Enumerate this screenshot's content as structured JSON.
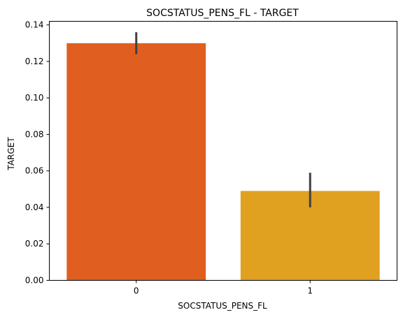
{
  "chart_data": {
    "type": "bar",
    "title": "SOCSTATUS_PENS_FL - TARGET",
    "xlabel": "SOCSTATUS_PENS_FL",
    "ylabel": "TARGET",
    "categories": [
      "0",
      "1"
    ],
    "values": [
      0.13,
      0.049
    ],
    "error_bars": [
      {
        "low": 0.124,
        "high": 0.136
      },
      {
        "low": 0.04,
        "high": 0.059
      }
    ],
    "bar_colors": [
      "#e05f20",
      "#e0a020"
    ],
    "error_bar_color": "#404040",
    "ylim": [
      0,
      0.142
    ],
    "yticks": [
      0.0,
      0.02,
      0.04,
      0.06,
      0.08,
      0.1,
      0.12,
      0.14
    ],
    "ytick_labels": [
      "0.00",
      "0.02",
      "0.04",
      "0.06",
      "0.08",
      "0.10",
      "0.12",
      "0.14"
    ],
    "grid": false,
    "legend": "none"
  }
}
